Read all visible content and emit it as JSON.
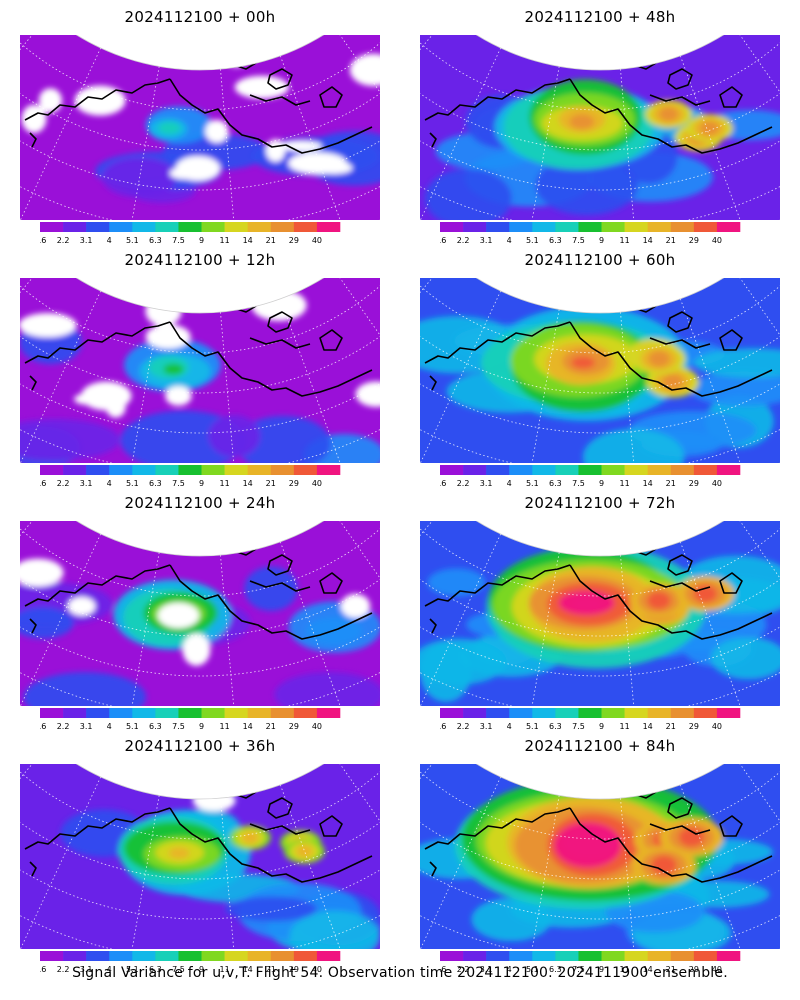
{
  "panels": [
    {
      "title": "2024112100 + 00h",
      "lead_hours": 0
    },
    {
      "title": "2024112100 + 48h",
      "lead_hours": 48
    },
    {
      "title": "2024112100 + 12h",
      "lead_hours": 12
    },
    {
      "title": "2024112100 + 60h",
      "lead_hours": 60
    },
    {
      "title": "2024112100 + 24h",
      "lead_hours": 24
    },
    {
      "title": "2024112100 + 72h",
      "lead_hours": 72
    },
    {
      "title": "2024112100 + 36h",
      "lead_hours": 36
    },
    {
      "title": "2024112100 + 84h",
      "lead_hours": 84
    }
  ],
  "colorbar": {
    "levels": [
      "1.6",
      "2.2",
      "3.1",
      "4",
      "5.1",
      "6.3",
      "7.5",
      "9",
      "11",
      "14",
      "21",
      "29",
      "40"
    ],
    "colors": [
      "#9a10d8",
      "#6a22e8",
      "#2f4ef0",
      "#1c8ef8",
      "#12b8e8",
      "#18d0b8",
      "#18c030",
      "#80d820",
      "#d6d620",
      "#e8b428",
      "#e89030",
      "#f05838",
      "#f01480"
    ]
  },
  "footer": "Signal Variance for u,v,T. Flight 54. Observation time 2024112100. 2024111900 ensemble."
}
